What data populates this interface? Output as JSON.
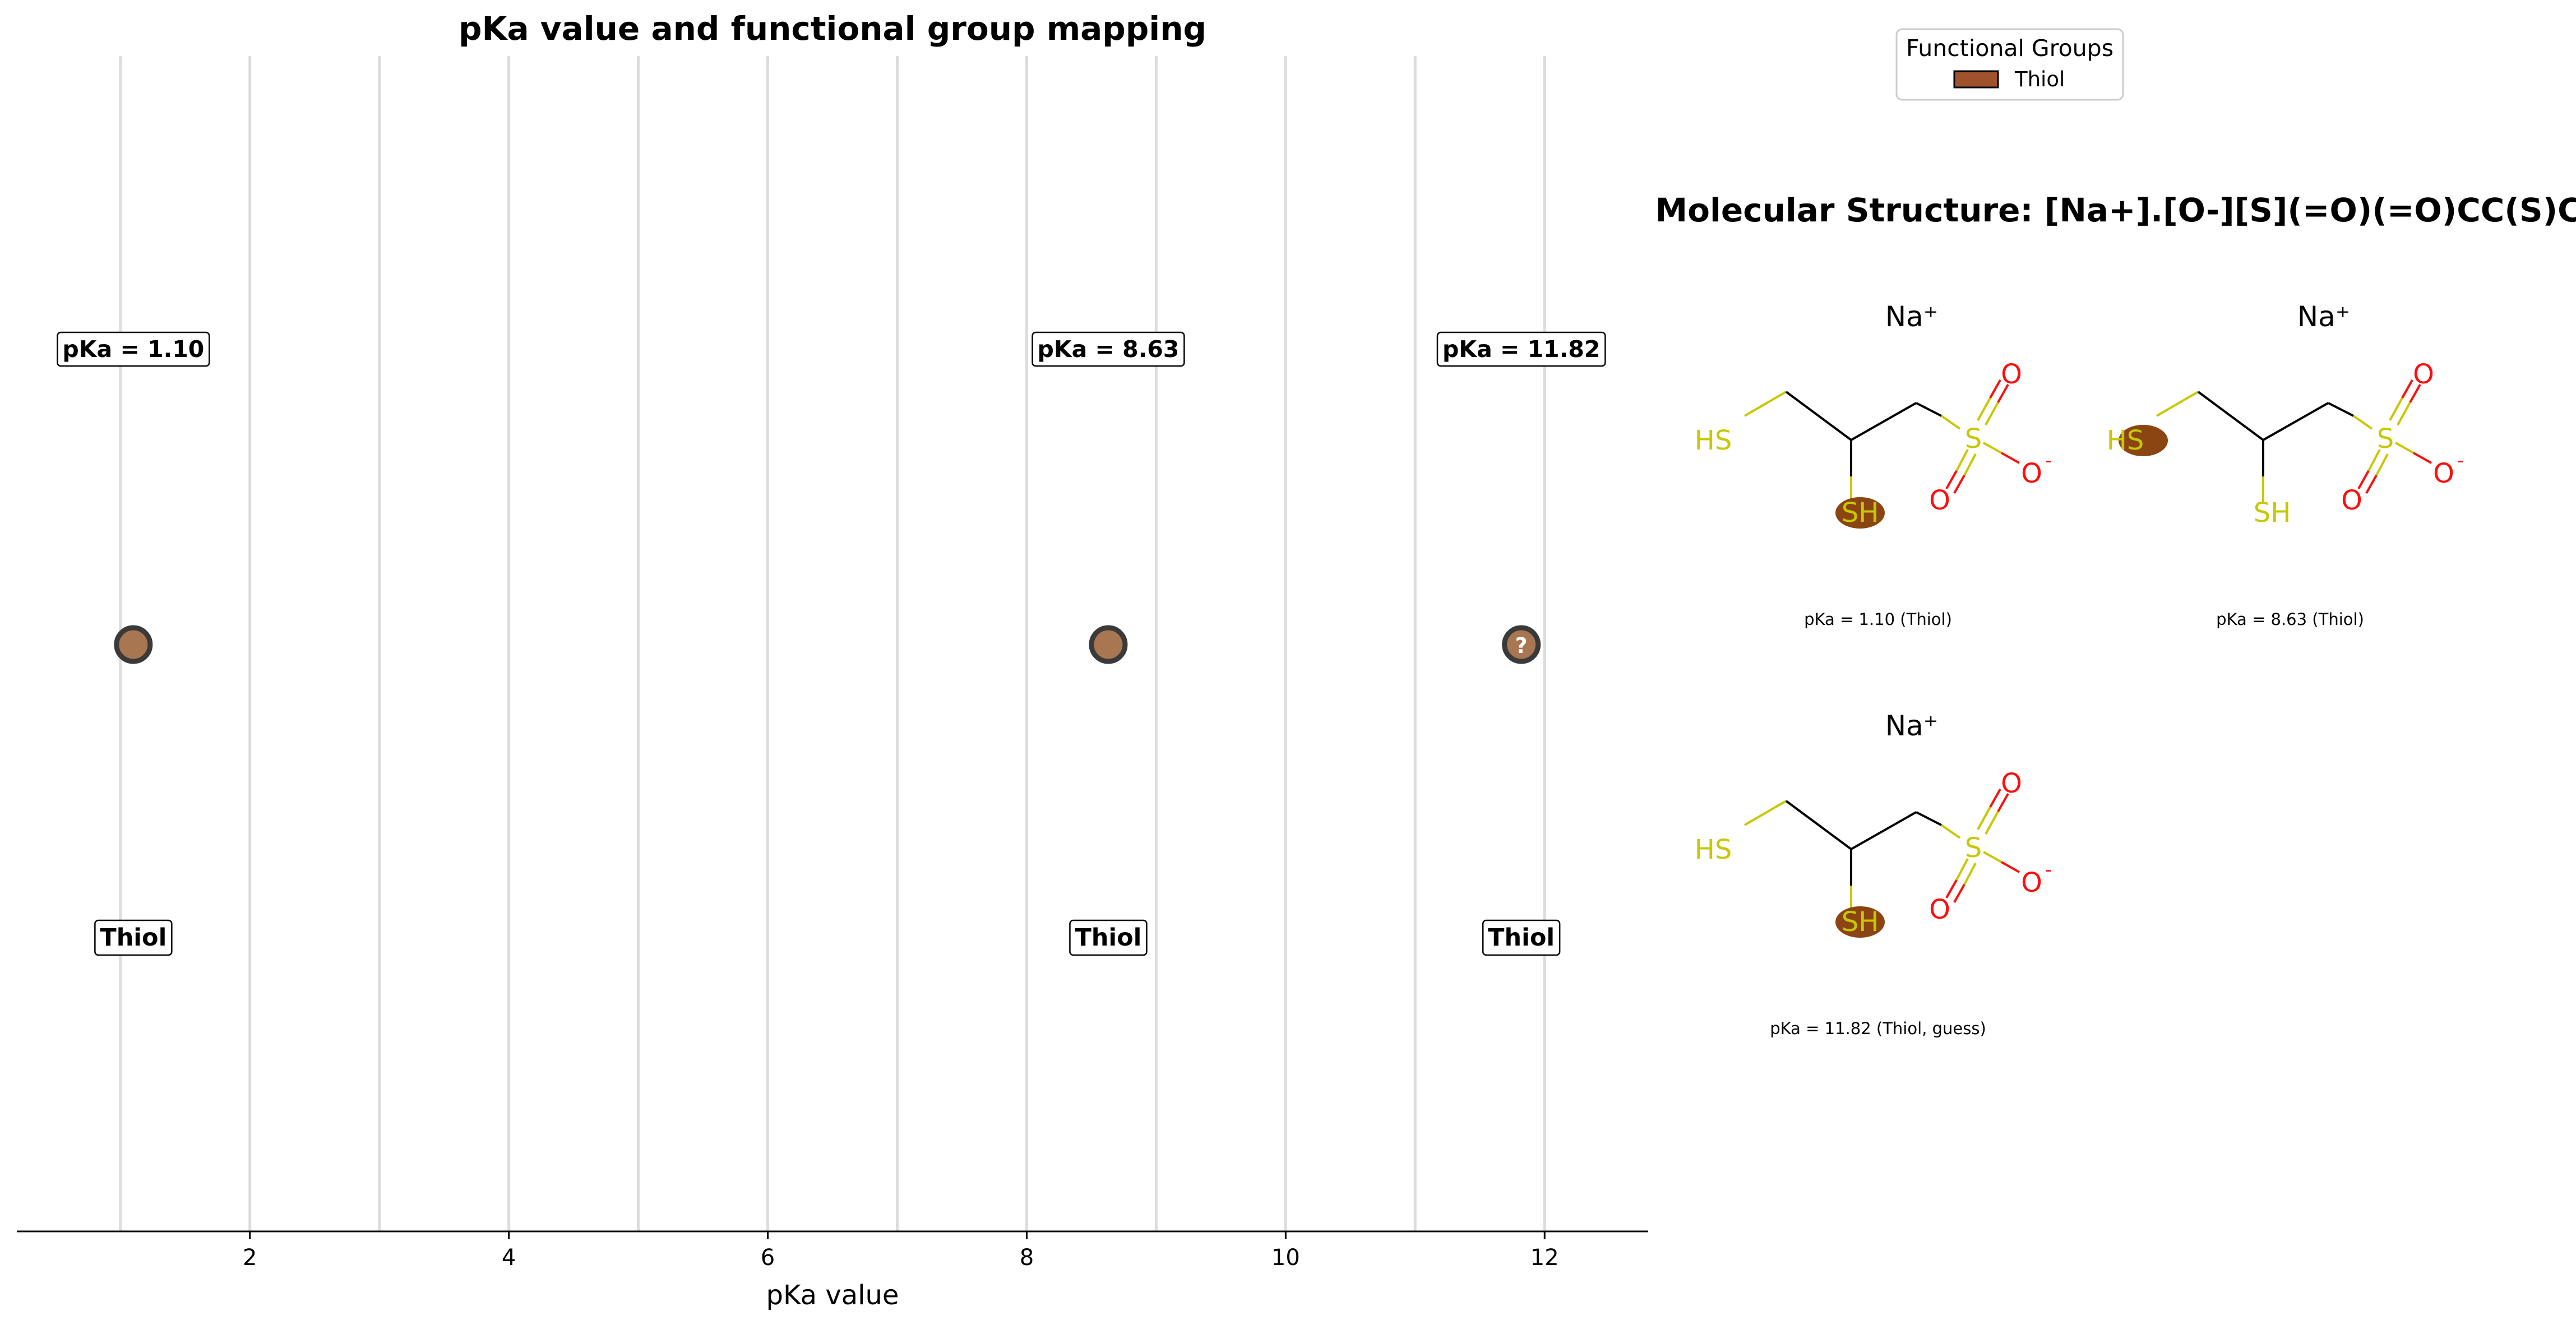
{
  "chart_data": {
    "type": "scatter",
    "title": "pKa value and functional group mapping",
    "xlabel": "pKa value",
    "ylabel": "",
    "xlim": [
      0.2,
      12.8
    ],
    "x_ticks": [
      2,
      4,
      6,
      8,
      10,
      12
    ],
    "x_tick_labels": [
      "2",
      "4",
      "6",
      "8",
      "10",
      "12"
    ],
    "grid": "vertical lines at every integer from 1 to 12",
    "points": [
      {
        "x": 1.1,
        "group": "Thiol",
        "value_label": "pKa = 1.10",
        "group_label": "Thiol",
        "guess": false,
        "marker_text": ""
      },
      {
        "x": 8.63,
        "group": "Thiol",
        "value_label": "pKa = 8.63",
        "group_label": "Thiol",
        "guess": false,
        "marker_text": ""
      },
      {
        "x": 11.82,
        "group": "Thiol",
        "value_label": "pKa = 11.82",
        "group_label": "Thiol",
        "guess": true,
        "marker_text": "?"
      }
    ],
    "legend": {
      "title": "Functional Groups",
      "placement": "top-right",
      "entries": [
        {
          "label": "Thiol",
          "color": "#a0522d"
        }
      ]
    }
  },
  "colors": {
    "marker_fill": "#a87650",
    "marker_edge": "#3a3a3a",
    "grid": "#dcdcdc",
    "highlight": "#8b4513",
    "sulfur": "#c8c800",
    "oxygen": "#ff0d0d",
    "bond": "#000000",
    "legend_patch": "#a0522d"
  },
  "molecule": {
    "title": "Molecular Structure: [Na+].[O-][S](=O)(=O)CC(S)CS",
    "structures": [
      {
        "counterion": "Na⁺",
        "highlight": "SH",
        "caption": "pKa = 1.10 (Thiol)"
      },
      {
        "counterion": "Na⁺",
        "highlight": "HS",
        "caption": "pKa = 8.63 (Thiol)"
      },
      {
        "counterion": "Na⁺",
        "highlight": "SH",
        "caption": "pKa = 11.82 (Thiol, guess)"
      }
    ],
    "atom_labels": {
      "hs": "HS",
      "sh": "SH",
      "s": "S",
      "o1": "O",
      "o2": "O",
      "ominus": "O",
      "minus": "-"
    }
  }
}
